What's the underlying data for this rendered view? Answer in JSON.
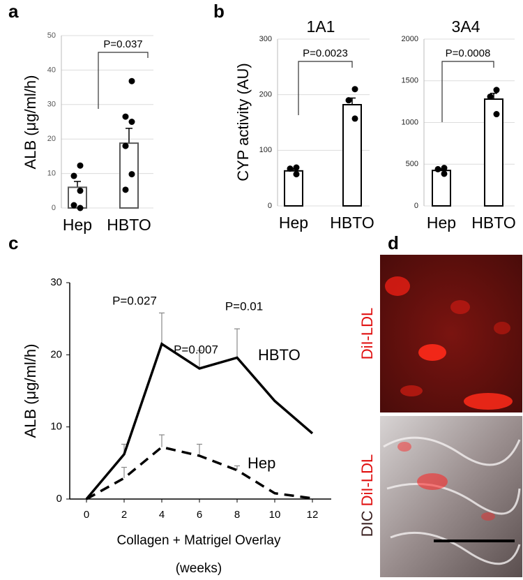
{
  "panel_labels": [
    "a",
    "b",
    "c",
    "d"
  ],
  "chart_data": [
    {
      "type": "bar",
      "y_label": "ALB (μg/ml/h)",
      "categories": [
        "Hep",
        "HBTO"
      ],
      "values": [
        6,
        18.8
      ],
      "errors": [
        1.7,
        4.3
      ],
      "points": [
        [
          12.3,
          9.3,
          5,
          0.8,
          0
        ],
        [
          36.8,
          26.5,
          25,
          18,
          9.8,
          5.3
        ]
      ],
      "color": "#595959",
      "ylim": [
        0,
        50
      ],
      "yticks": [
        0,
        10,
        20,
        30,
        40,
        50
      ],
      "grid": true,
      "annotation": "P=0.037"
    },
    {
      "type": "bar",
      "title": "1A1",
      "y_label": "CYP activity (AU)",
      "categories": [
        "Hep",
        "HBTO"
      ],
      "values": [
        63,
        182
      ],
      "errors": [
        4,
        12
      ],
      "points": [
        [
          69,
          67,
          57
        ],
        [
          210,
          190,
          157
        ]
      ],
      "color": "#000000",
      "ylim": [
        0,
        300
      ],
      "yticks": [
        0,
        100,
        200,
        300
      ],
      "grid": true,
      "annotation": "P=0.0023"
    },
    {
      "type": "bar",
      "title": "3A4",
      "categories": [
        "Hep",
        "HBTO"
      ],
      "values": [
        425,
        1280
      ],
      "errors": [
        20,
        70
      ],
      "points": [
        [
          455,
          440,
          385
        ],
        [
          1390,
          1310,
          1100
        ]
      ],
      "color": "#000000",
      "ylim": [
        0,
        2000
      ],
      "yticks": [
        0,
        500,
        1000,
        1500,
        2000
      ],
      "grid": true,
      "annotation": "P=0.0008"
    },
    {
      "type": "line",
      "y_label": "ALB (μg/ml/h)",
      "x_label": [
        "Collagen + Matrigel Overlay",
        "(weeks)"
      ],
      "x": [
        0,
        2,
        4,
        6,
        8,
        10,
        12
      ],
      "series": [
        {
          "name": "HBTO",
          "color": "#000000",
          "dash": false,
          "values": [
            0,
            6.2,
            21.5,
            18.1,
            19.6,
            13.6,
            9.1
          ],
          "errors": [
            null,
            1.4,
            4.3,
            2.5,
            4,
            null,
            null
          ]
        },
        {
          "name": "Hep",
          "color": "#000000",
          "dash": true,
          "values": [
            0,
            2.9,
            7.2,
            6,
            4,
            0.8,
            0.1
          ],
          "errors": [
            null,
            1.5,
            1.7,
            1.6,
            0.6,
            null,
            null
          ]
        }
      ],
      "xlim": [
        -1,
        13
      ],
      "ylim": [
        0,
        30
      ],
      "xticks": [
        0,
        2,
        4,
        6,
        8,
        10,
        12
      ],
      "yticks": [
        0,
        10,
        20,
        30
      ],
      "grid": false,
      "annotations": [
        "P=0.027",
        "P=0.007",
        "P=0.01"
      ]
    }
  ],
  "images": {
    "top_label": "DiI-LDL",
    "bottom_label": [
      "DIC",
      "DiI-LDL"
    ]
  }
}
